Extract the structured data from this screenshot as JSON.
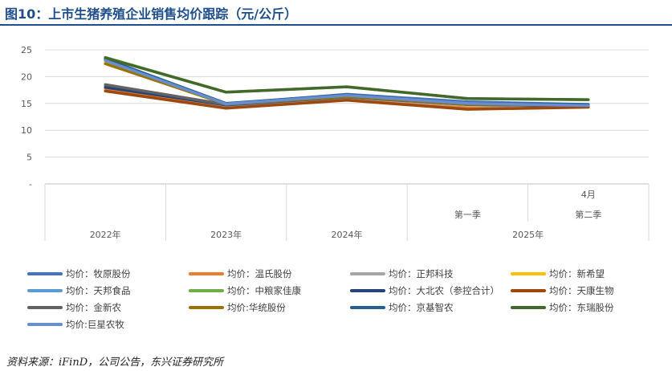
{
  "title": "图10：上市生猪养殖企业销售均价跟踪（元/公斤）",
  "source": "资料来源：iFinD，公司公告，东兴证券研究所",
  "chart_data": {
    "type": "line",
    "x": [
      "2022年",
      "2023年",
      "2024年",
      "2025年 第一季",
      "2025年 第二季 4月"
    ],
    "x_groups": [
      {
        "label": "2022年",
        "sub": []
      },
      {
        "label": "2023年",
        "sub": []
      },
      {
        "label": "2024年",
        "sub": []
      },
      {
        "label": "2025年",
        "sub": [
          "第一季",
          "第二季"
        ]
      }
    ],
    "x_month_label": "4月",
    "ylim": [
      0,
      25
    ],
    "yticks": [
      "-",
      "5",
      "10",
      "15",
      "20",
      "25"
    ],
    "grid": true,
    "legend": "bottom",
    "series": [
      {
        "name": "均价：牧原股份",
        "color": "#4472c4",
        "values": [
          23.0,
          14.9,
          16.7,
          15.3,
          14.8
        ]
      },
      {
        "name": "均价：温氏股份",
        "color": "#ed7d31",
        "values": [
          17.8,
          14.2,
          15.9,
          14.3,
          14.4
        ]
      },
      {
        "name": "均价：正邦科技",
        "color": "#a5a5a5",
        "values": [
          18.3,
          14.6,
          16.1,
          14.6,
          14.5
        ]
      },
      {
        "name": "均价：新希望",
        "color": "#ffc000",
        "values": [
          22.6,
          14.8,
          16.3,
          14.7,
          14.6
        ]
      },
      {
        "name": "均价：天邦食品",
        "color": "#5b9bd5",
        "values": [
          23.2,
          14.9,
          16.4,
          14.9,
          14.6
        ]
      },
      {
        "name": "均价：中粮家佳康",
        "color": "#70ad47",
        "values": [
          23.6,
          17.1,
          18.1,
          15.9,
          15.7
        ]
      },
      {
        "name": "均价：大北农（参控合计）",
        "color": "#264478",
        "values": [
          18.0,
          14.7,
          16.2,
          14.8,
          14.5
        ]
      },
      {
        "name": "均价：天康生物",
        "color": "#9e480e",
        "values": [
          17.3,
          14.1,
          15.6,
          13.9,
          14.3
        ]
      },
      {
        "name": "均价：金新农",
        "color": "#636363",
        "values": [
          18.5,
          14.8,
          16.2,
          14.8,
          14.6
        ]
      },
      {
        "name": "均价:华统股份",
        "color": "#997300",
        "values": [
          22.4,
          14.9,
          16.3,
          14.9,
          14.7
        ]
      },
      {
        "name": "均价：京基智农",
        "color": "#255e91",
        "values": [
          23.3,
          15.0,
          16.6,
          15.0,
          14.8
        ]
      },
      {
        "name": "均价：东瑞股份",
        "color": "#43682b",
        "values": [
          23.5,
          17.1,
          18.1,
          15.9,
          15.7
        ]
      },
      {
        "name": "均价:巨星农牧",
        "color": "#698ed0",
        "values": [
          23.0,
          14.9,
          16.5,
          15.0,
          14.6
        ]
      }
    ]
  }
}
